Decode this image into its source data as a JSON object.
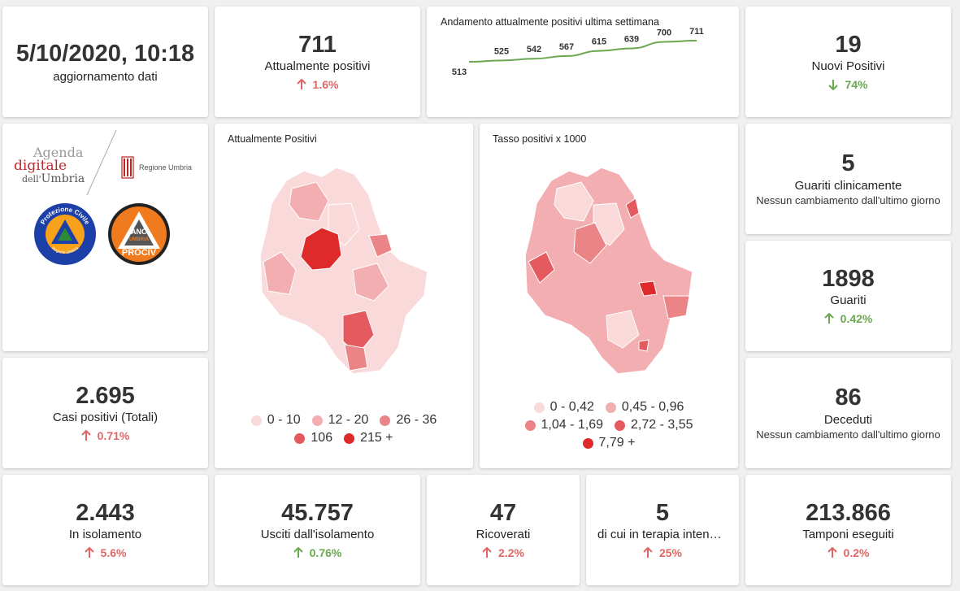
{
  "header": {
    "date": "5/10/2020, 10:18",
    "date_label": "aggiornamento dati"
  },
  "attualmente_positivi": {
    "value": "711",
    "label": "Attualmente positivi",
    "change": "1.6%",
    "direction": "up"
  },
  "nuovi_positivi": {
    "value": "19",
    "label": "Nuovi Positivi",
    "change": "74%",
    "direction": "down"
  },
  "trend": {
    "title": "Andamento attualmente positivi ultima settimana",
    "chart_data": {
      "type": "line",
      "title": "Andamento attualmente positivi ultima settimana",
      "values": [
        513,
        525,
        542,
        567,
        615,
        639,
        700,
        711
      ],
      "labels": [
        "513",
        "525",
        "542",
        "567",
        "615",
        "639",
        "700",
        "711"
      ],
      "color": "#6aa84f"
    }
  },
  "logos": {
    "agenda_line1": "Agenda",
    "agenda_line2": "digitale",
    "agenda_line3_a": "dell'",
    "agenda_line3_b": "Umbria",
    "regione": "Regione Umbria",
    "protezione_ring": "Protezione Civile",
    "protezione_bottom": "Regione Umbria",
    "anci_top": "ANCI",
    "anci_mid": "UMBRIA",
    "anci_bottom": "PROCIV"
  },
  "map1": {
    "title": "Attualmente Positivi",
    "legend": [
      {
        "label": "0 - 10",
        "color": "#f9d9da"
      },
      {
        "label": "12 - 20",
        "color": "#f2aeb0"
      },
      {
        "label": "26 - 36",
        "color": "#ea8487"
      },
      {
        "label": "106",
        "color": "#e45a5e"
      },
      {
        "label": "215 +",
        "color": "#de2a2a"
      }
    ]
  },
  "map2": {
    "title": "Tasso positivi x 1000",
    "legend": [
      {
        "label": "0 - 0,42",
        "color": "#f9d9da"
      },
      {
        "label": "0,45 - 0,96",
        "color": "#f2aeb0"
      },
      {
        "label": "1,04 - 1,69",
        "color": "#ea8487"
      },
      {
        "label": "2,72 - 3,55",
        "color": "#e45a5e"
      },
      {
        "label": "7,79 +",
        "color": "#de2a2a"
      }
    ]
  },
  "guariti_clinicamente": {
    "value": "5",
    "label": "Guariti clinicamente",
    "note": "Nessun cambiamento dall'ultimo giorno"
  },
  "guariti": {
    "value": "1898",
    "label": "Guariti",
    "change": "0.42%",
    "direction": "up-good"
  },
  "deceduti": {
    "value": "86",
    "label": "Deceduti",
    "note": "Nessun cambiamento dall'ultimo giorno"
  },
  "casi_totali": {
    "value": "2.695",
    "label": "Casi positivi (Totali)",
    "change": "0.71%",
    "direction": "up"
  },
  "isolamento": {
    "value": "2.443",
    "label": "In isolamento",
    "change": "5.6%",
    "direction": "up"
  },
  "usciti": {
    "value": "45.757",
    "label": "Usciti dall'isolamento",
    "change": "0.76%",
    "direction": "up-good"
  },
  "ricoverati": {
    "value": "47",
    "label": "Ricoverati",
    "change": "2.2%",
    "direction": "up"
  },
  "terapia": {
    "value": "5",
    "label": "di cui in terapia intensiva",
    "change": "25%",
    "direction": "up"
  },
  "tamponi": {
    "value": "213.866",
    "label": "Tamponi eseguiti",
    "change": "0.2%",
    "direction": "up"
  }
}
